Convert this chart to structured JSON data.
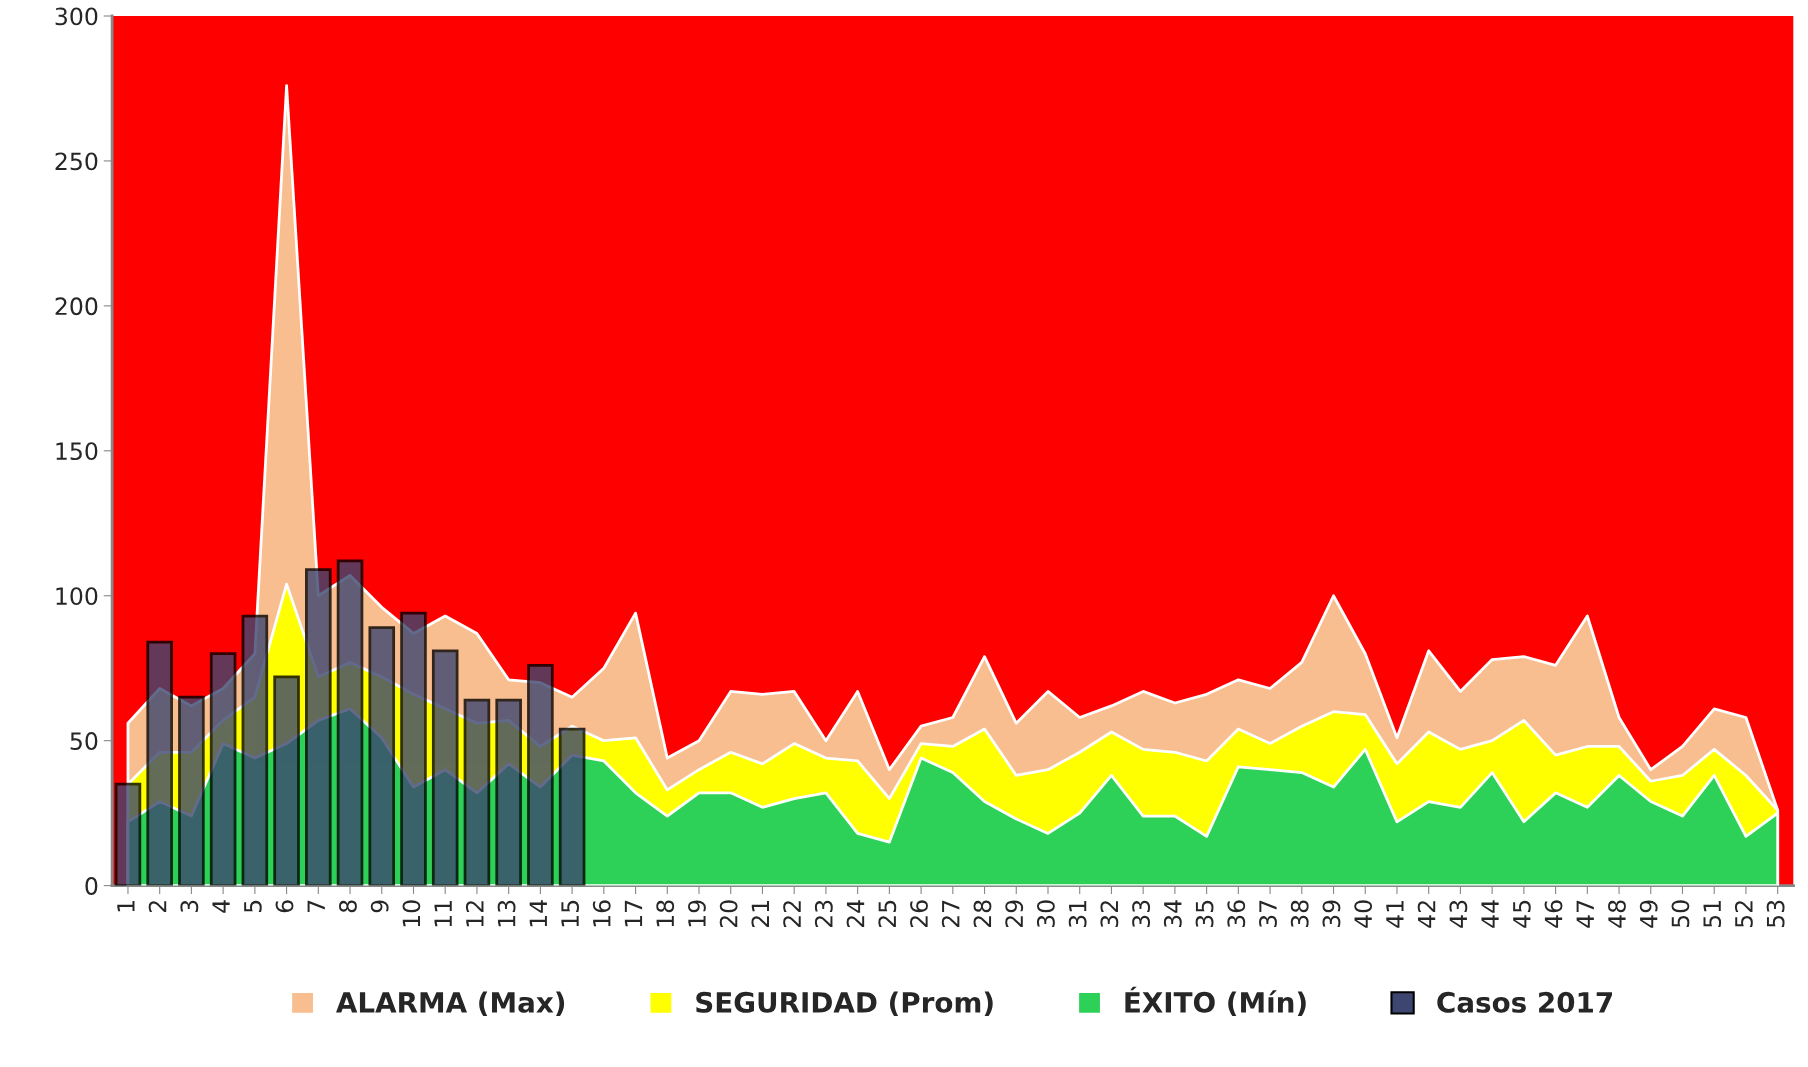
{
  "chart_data": {
    "type": "area",
    "categories": [
      "1",
      "2",
      "3",
      "4",
      "5",
      "6",
      "7",
      "8",
      "9",
      "10",
      "11",
      "12",
      "13",
      "14",
      "15",
      "16",
      "17",
      "18",
      "19",
      "20",
      "21",
      "22",
      "23",
      "24",
      "25",
      "26",
      "27",
      "28",
      "29",
      "30",
      "31",
      "32",
      "33",
      "34",
      "35",
      "36",
      "37",
      "38",
      "39",
      "40",
      "41",
      "42",
      "43",
      "44",
      "45",
      "46",
      "47",
      "48",
      "49",
      "50",
      "51",
      "52",
      "53"
    ],
    "series": [
      {
        "name": "ALARMA (Max)",
        "color": "#f8be8f",
        "values": [
          56,
          68,
          62,
          68,
          80,
          276,
          100,
          107,
          96,
          87,
          93,
          87,
          71,
          70,
          65,
          75,
          94,
          44,
          50,
          67,
          66,
          67,
          50,
          67,
          40,
          55,
          58,
          79,
          56,
          67,
          58,
          62,
          67,
          63,
          66,
          71,
          68,
          77,
          100,
          80,
          51,
          81,
          67,
          78,
          79,
          76,
          93,
          58,
          40,
          48,
          61,
          58,
          26
        ]
      },
      {
        "name": "SEGURIDAD (Prom)",
        "color": "#ffff00",
        "values": [
          35,
          46,
          46,
          57,
          65,
          104,
          72,
          77,
          72,
          66,
          61,
          56,
          57,
          48,
          55,
          50,
          51,
          33,
          40,
          46,
          42,
          49,
          44,
          43,
          30,
          49,
          48,
          54,
          38,
          40,
          46,
          53,
          47,
          46,
          43,
          54,
          49,
          55,
          60,
          59,
          42,
          53,
          47,
          50,
          57,
          45,
          48,
          48,
          36,
          38,
          47,
          38,
          26
        ]
      },
      {
        "name": "ÉXITO (Mín)",
        "color": "#2ed158",
        "values": [
          22,
          29,
          24,
          49,
          44,
          49,
          57,
          61,
          51,
          34,
          40,
          32,
          42,
          34,
          45,
          43,
          32,
          24,
          32,
          32,
          27,
          30,
          32,
          18,
          15,
          44,
          39,
          29,
          23,
          18,
          25,
          38,
          24,
          24,
          17,
          41,
          40,
          39,
          34,
          47,
          22,
          29,
          27,
          39,
          22,
          32,
          27,
          38,
          29,
          24,
          38,
          17,
          25
        ]
      },
      {
        "name": "Casos 2017",
        "type": "bar",
        "color": "#3c4670",
        "values": [
          35,
          84,
          65,
          80,
          93,
          72,
          109,
          112,
          89,
          94,
          81,
          64,
          64,
          76,
          54,
          null,
          null,
          null,
          null,
          null,
          null,
          null,
          null,
          null,
          null,
          null,
          null,
          null,
          null,
          null,
          null,
          null,
          null,
          null,
          null,
          null,
          null,
          null,
          null,
          null,
          null,
          null,
          null,
          null,
          null,
          null,
          null,
          null,
          null,
          null,
          null,
          null,
          null
        ]
      }
    ],
    "ylim": [
      0,
      300
    ],
    "yticks": [
      0,
      50,
      100,
      150,
      200,
      250,
      300
    ],
    "bands": [
      {
        "axis": "y",
        "from": 0,
        "to": 300,
        "color": "#ff0000"
      }
    ],
    "grid": false,
    "legend": "bottom"
  }
}
